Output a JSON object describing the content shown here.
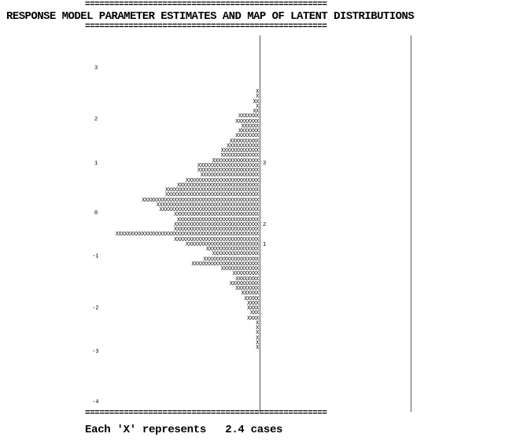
{
  "header": {
    "rule": "==================================================",
    "title": "RESPONSE MODEL PARAMETER ESTIMATES AND MAP OF LATENT DISTRIBUTIONS"
  },
  "axis": {
    "ticks": [
      "3",
      "2",
      "1",
      "0",
      "-1",
      "-2",
      "-3",
      "-4"
    ]
  },
  "thresholds": [
    "3",
    "2",
    "1"
  ],
  "distribution": [
    "X",
    "X",
    "XX",
    "X",
    "XX",
    "XXXXXXX",
    "XXXXXXXX",
    "XXXXXX",
    "XXXXXXX",
    "XXXXXXXX",
    "XXXXXXXXXX",
    "XXXXXXXXXXX",
    "XXXXXXXXXXXXX",
    "XXXXXXXXXXXXX",
    "XXXXXXXXXXXXXXXX",
    "XXXXXXXXXXXXXXXXXXXXX",
    "XXXXXXXXXXXXXXXXXXXXX",
    "XXXXXXXXXXXXXXXXXXXX",
    "XXXXXXXXXXXXXXXXXXXXXXXXX",
    "XXXXXXXXXXXXXXXXXXXXXXXXXXXX",
    "XXXXXXXXXXXXXXXXXXXXXXXXXXXXXXXX",
    "XXXXXXXXXXXXXXXXXXXXXXXXXXXXXXXX",
    "XXXXXXXXXXXXXXXXXXXXXXXXXXXXXXXXXXXXXXXX",
    "XXXXXXXXXXXXXXXXXXXXXXXXXXXXXXXXXXX",
    "XXXXXXXXXXXXXXXXXXXXXXXXXXXXXXXXXX",
    "XXXXXXXXXXXXXXXXXXXXXXXXXXXXX",
    "XXXXXXXXXXXXXXXXXXXXXXXXXXXX",
    "XXXXXXXXXXXXXXXXXXXXXXXXXXXXX",
    "XXXXXXXXXXXXXXXXXXXXXXXXXXXXX",
    "XXXXXXXXXXXXXXXXXXXXXXXXXXXXXXXXXXXXXXXXXXXXXXXXX",
    "XXXXXXXXXXXXXXXXXXXXXXXXXXXXX",
    "XXXXXXXXXXXXXXXXXXXXXXXXX",
    "XXXXXXXXXXXXXXXXXX",
    "XXXXXXXXXXXXXXXX",
    "XXXXXXXXXXXXXXXXXXX",
    "XXXXXXXXXXXXXXXXXXXXXXX",
    "XXXXXXXXXXXXX",
    "XXXXXXXXX",
    "XXXXXXXX",
    "XXXXXXXXXX",
    "XXXXXXXX",
    "XXXXXX",
    "XXXXX",
    "XXXX",
    "XXXX",
    "XXX",
    "XXXX",
    "X",
    "X",
    "X",
    "X",
    "X",
    "X"
  ],
  "footer": {
    "note": "Each 'X' represents   2.4 cases"
  }
}
